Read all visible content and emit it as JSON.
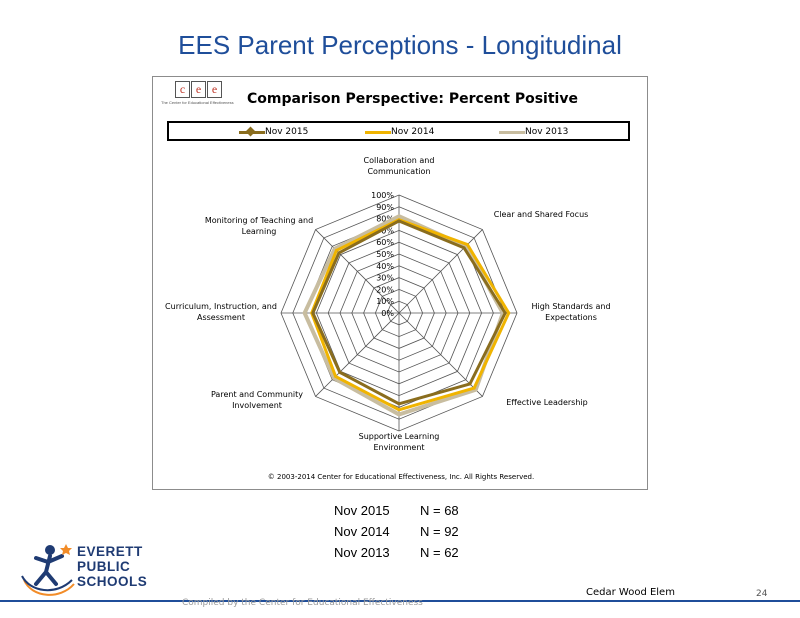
{
  "slide": {
    "title": "EES Parent Perceptions - Longitudinal",
    "school": "Cedar Wood Elem",
    "page_number": "24",
    "footer_note": "Compiled by the Center for Educational Effectiveness"
  },
  "logo": {
    "cee_letters": [
      "c",
      "e",
      "e"
    ],
    "cee_tagline": "The Center for Educational Effectiveness",
    "district_lines": [
      "EVERETT",
      "PUBLIC",
      "SCHOOLS"
    ]
  },
  "colors": {
    "title": "#1f4e9a",
    "nov2015": "#8a6d1e",
    "nov2014": "#f0b400",
    "nov2013": "#c8bda0",
    "grid": "#555555",
    "district": "#1f3b73"
  },
  "respondents": [
    {
      "label": "Nov 2015",
      "n": "N = 68"
    },
    {
      "label": "Nov 2014",
      "n": "N = 92"
    },
    {
      "label": "Nov 2013",
      "n": "N = 62"
    }
  ],
  "chart_data": {
    "type": "radar",
    "title": "Comparison Perspective: Percent Positive",
    "copyright": "© 2003-2014 Center for Educational Effectiveness, Inc. All Rights Reserved.",
    "axis_min": 0,
    "axis_max": 100,
    "ticks": [
      "0%",
      "10%",
      "20%",
      "30%",
      "40%",
      "50%",
      "60%",
      "70%",
      "80%",
      "90%",
      "100%"
    ],
    "categories": [
      "Collaboration and Communication",
      "Clear and Shared Focus",
      "High Standards and Expectations",
      "Effective Leadership",
      "Supportive Learning Environment",
      "Parent and Community Involvement",
      "Curriculum, Instruction, and Assessment",
      "Monitoring of Teaching and Learning"
    ],
    "category_label_lines": [
      [
        "Collaboration and",
        "Communication"
      ],
      [
        "Clear and Shared Focus"
      ],
      [
        "High Standards and",
        "Expectations"
      ],
      [
        "Effective Leadership"
      ],
      [
        "Supportive Learning",
        "Environment"
      ],
      [
        "Parent and Community",
        "Involvement"
      ],
      [
        "Curriculum, Instruction, and",
        "Assessment"
      ],
      [
        "Monitoring of Teaching and",
        "Learning"
      ]
    ],
    "series": [
      {
        "name": "Nov 2015",
        "values": [
          78,
          78,
          90,
          85,
          77,
          71,
          73,
          72
        ]
      },
      {
        "name": "Nov 2014",
        "values": [
          79,
          82,
          93,
          90,
          82,
          76,
          74,
          75
        ]
      },
      {
        "name": "Nov 2013",
        "values": [
          82,
          80,
          88,
          92,
          86,
          78,
          80,
          77
        ]
      }
    ],
    "legend_position": "top"
  }
}
